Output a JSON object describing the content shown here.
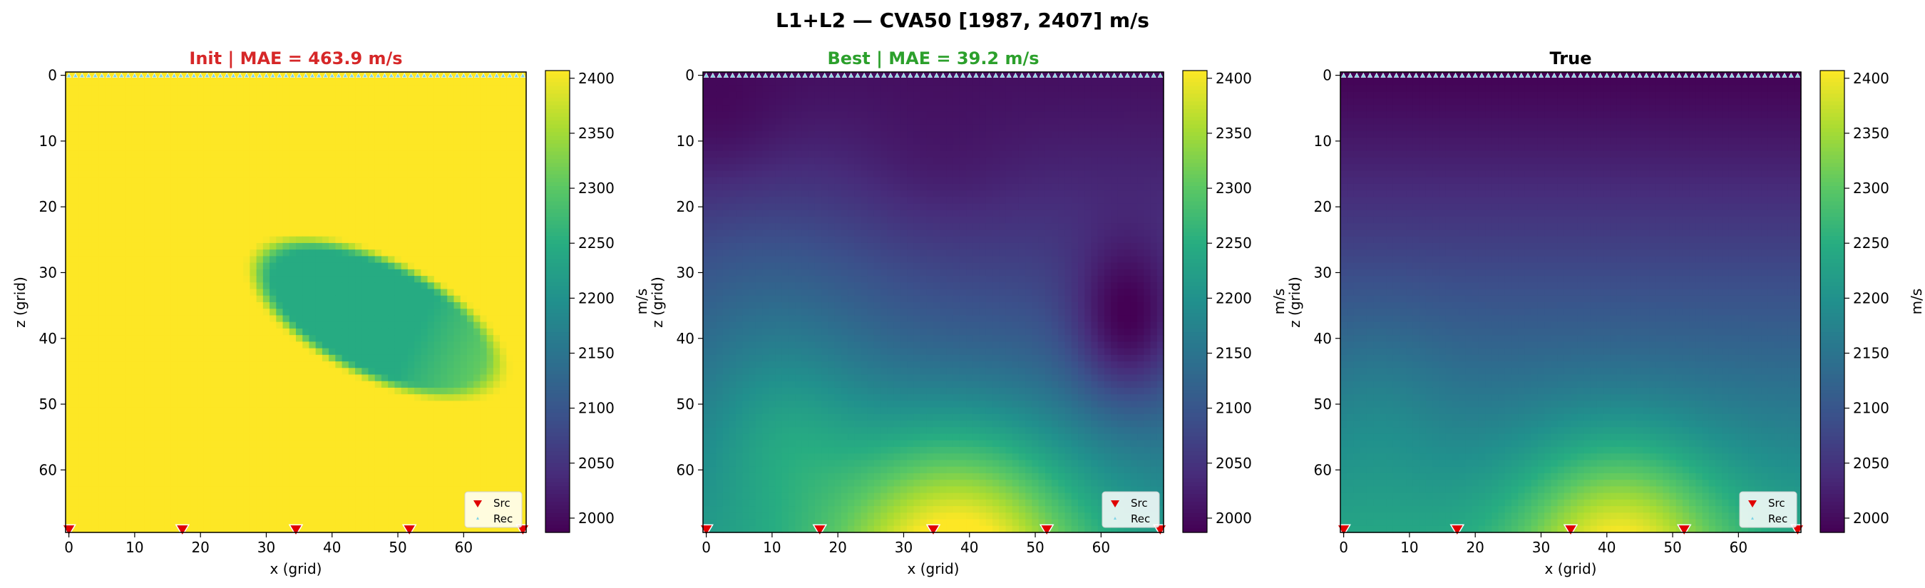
{
  "figure": {
    "title": "L1+L2 — CVA50 [1987, 2407] m/s"
  },
  "colors": {
    "init_title": "#d62728",
    "best_title": "#2ca02c",
    "true_title": "#000000",
    "source_marker": "#e00000",
    "receiver_marker": "#7fd3e6"
  },
  "chart_data": [
    {
      "type": "heatmap",
      "title": "Init  |  MAE = 463.9 m/s",
      "title_color": "#d62728",
      "xlabel": "x (grid)",
      "ylabel": "z (grid)",
      "xlim": [
        0,
        69
      ],
      "ylim": [
        69,
        0
      ],
      "xticks": [
        0,
        10,
        20,
        30,
        40,
        50,
        60
      ],
      "yticks": [
        0,
        10,
        20,
        30,
        40,
        50,
        60
      ],
      "colorbar": {
        "label": "m/s",
        "ticks": [
          2000,
          2050,
          2100,
          2150,
          2200,
          2250,
          2300,
          2350,
          2400
        ],
        "range": [
          1987,
          2407
        ],
        "colormap": "viridis"
      },
      "field_description": "uniform 2407 m/s with a diagonal ellipsoidal anomaly (~2250 m/s) from about (x=30, z=28) to (x=65, z=45)",
      "sources": {
        "x": [
          0,
          17.25,
          34.5,
          51.75,
          69
        ],
        "z": 69,
        "label": "Src"
      },
      "receivers": {
        "count": 70,
        "z": 0,
        "label": "Rec"
      }
    },
    {
      "type": "heatmap",
      "title": "Best  |  MAE = 39.2 m/s",
      "title_color": "#2ca02c",
      "xlabel": "x (grid)",
      "ylabel": "z (grid)",
      "xlim": [
        0,
        69
      ],
      "ylim": [
        69,
        0
      ],
      "xticks": [
        0,
        10,
        20,
        30,
        40,
        50,
        60
      ],
      "yticks": [
        0,
        10,
        20,
        30,
        40,
        50,
        60
      ],
      "colorbar": {
        "label": "m/s",
        "ticks": [
          2000,
          2050,
          2100,
          2150,
          2200,
          2250,
          2300,
          2350,
          2400
        ],
        "range": [
          1987,
          2407
        ],
        "colormap": "viridis"
      },
      "field_description": "low velocity (~2000 m/s) near top increasing with depth, bright (~2400 m/s) dome at bottom centred near x=38, with a slower pocket near x=65, z=38",
      "sources": {
        "x": [
          0,
          17.25,
          34.5,
          51.75,
          69
        ],
        "z": 69,
        "label": "Src"
      },
      "receivers": {
        "count": 70,
        "z": 0,
        "label": "Rec"
      }
    },
    {
      "type": "heatmap",
      "title": "True",
      "title_color": "#000000",
      "xlabel": "x (grid)",
      "ylabel": "z (grid)",
      "xlim": [
        0,
        69
      ],
      "ylim": [
        69,
        0
      ],
      "xticks": [
        0,
        10,
        20,
        30,
        40,
        50,
        60
      ],
      "yticks": [
        0,
        10,
        20,
        30,
        40,
        50,
        60
      ],
      "colorbar": {
        "label": "m/s",
        "ticks": [
          2000,
          2050,
          2100,
          2150,
          2200,
          2250,
          2300,
          2350,
          2400
        ],
        "range": [
          1987,
          2407
        ],
        "colormap": "viridis"
      },
      "field_description": "~1990 m/s at top increasing smoothly with depth to ~2250 m/s at bottom, with a bright (~2400 m/s) dome centred near x=42, z=69",
      "sources": {
        "x": [
          0,
          17.25,
          34.5,
          51.75,
          69
        ],
        "z": 69,
        "label": "Src"
      },
      "receivers": {
        "count": 70,
        "z": 0,
        "label": "Rec"
      }
    }
  ]
}
